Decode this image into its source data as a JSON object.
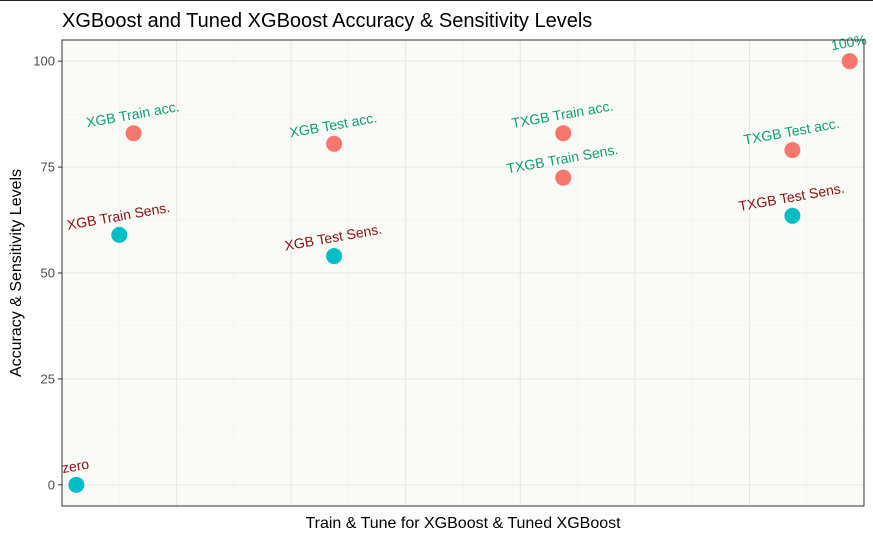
{
  "chart_data": {
    "type": "scatter",
    "title": "XGBoost and Tuned XGBoost Accuracy & Sensitivity Levels",
    "xlabel": "Train & Tune for XGBoost & Tuned XGBoost",
    "ylabel": "Accuracy & Sensitivity Levels",
    "xlim": [
      0,
      14
    ],
    "ylim": [
      -5,
      105
    ],
    "y_ticks": [
      0,
      25,
      50,
      75,
      100
    ],
    "x_ticks_shown": false,
    "grid": true,
    "legend": "none",
    "colors": {
      "accuracy": "#F8766D",
      "sensitivity": "#00BFC4",
      "label_green": "#0E9E7A",
      "label_red": "#8B1010",
      "panel_bg": "#FAFAF6",
      "border": "#333333"
    },
    "points": [
      {
        "x": 1.25,
        "y": 83,
        "group": "accuracy",
        "label": "XGB Train acc.",
        "label_color": "green"
      },
      {
        "x": 1.0,
        "y": 59,
        "group": "sensitivity",
        "label": "XGB Train Sens.",
        "label_color": "red"
      },
      {
        "x": 4.75,
        "y": 80.5,
        "group": "accuracy",
        "label": "XGB Test acc.",
        "label_color": "green"
      },
      {
        "x": 4.75,
        "y": 54,
        "group": "sensitivity",
        "label": "XGB Test Sens.",
        "label_color": "red"
      },
      {
        "x": 8.75,
        "y": 83,
        "group": "accuracy",
        "label": "TXGB Train acc.",
        "label_color": "green"
      },
      {
        "x": 8.75,
        "y": 72.5,
        "group": "accuracy",
        "label": "TXGB Train Sens.",
        "label_color": "green"
      },
      {
        "x": 12.75,
        "y": 79,
        "group": "accuracy",
        "label": "TXGB Test acc.",
        "label_color": "green"
      },
      {
        "x": 12.75,
        "y": 63.5,
        "group": "sensitivity",
        "label": "TXGB Test Sens.",
        "label_color": "red"
      },
      {
        "x": 13.75,
        "y": 100,
        "group": "accuracy",
        "label": "100%",
        "label_color": "green"
      },
      {
        "x": 0.25,
        "y": 0,
        "group": "sensitivity",
        "label": "zero",
        "label_color": "red"
      }
    ]
  }
}
